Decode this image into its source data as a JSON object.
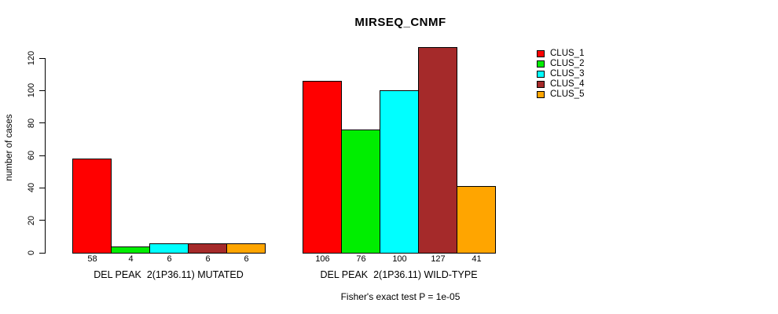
{
  "title": "MIRSEQ_CNMF",
  "footer": "Fisher's exact test P = 1e-05",
  "y_axis": {
    "label": "number of cases",
    "ticks": [
      "0",
      "20",
      "40",
      "60",
      "80",
      "100",
      "120"
    ]
  },
  "chart_data": {
    "type": "bar",
    "title": "MIRSEQ_CNMF",
    "ylabel": "number of cases",
    "ylim": [
      0,
      128
    ],
    "yticks": [
      0,
      20,
      40,
      60,
      80,
      100,
      120
    ],
    "grid": false,
    "legend_position": "top-right",
    "categories": [
      "DEL PEAK  2(1P36.11) MUTATED",
      "DEL PEAK  2(1P36.11) WILD-TYPE"
    ],
    "series": [
      {
        "name": "CLUS_1",
        "color": "#FF0000",
        "values": [
          58,
          106
        ]
      },
      {
        "name": "CLUS_2",
        "color": "#00EE00",
        "values": [
          4,
          76
        ]
      },
      {
        "name": "CLUS_3",
        "color": "#00FFFF",
        "values": [
          6,
          100
        ]
      },
      {
        "name": "CLUS_4",
        "color": "#A52A2A",
        "values": [
          6,
          127
        ]
      },
      {
        "name": "CLUS_5",
        "color": "#FFA500",
        "values": [
          6,
          41
        ]
      }
    ],
    "bar_value_labels": [
      [
        58,
        4,
        6,
        6,
        6
      ],
      [
        106,
        76,
        100,
        127,
        41
      ]
    ],
    "annotation": "Fisher's exact test P = 1e-05"
  }
}
